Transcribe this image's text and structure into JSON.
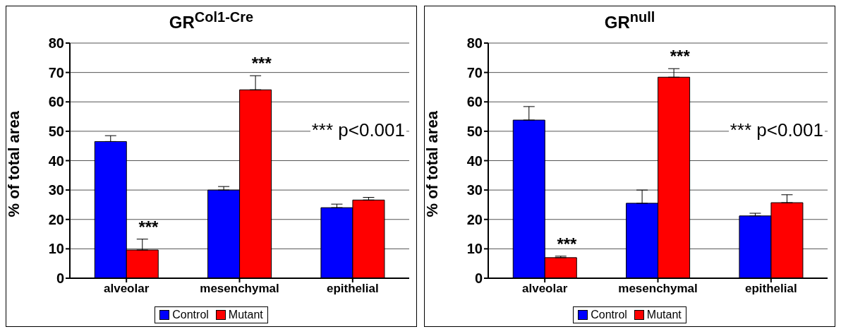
{
  "chart_data": [
    {
      "type": "bar",
      "title": "GR$^{Col1-Cre}$",
      "ylabel": "% of total area",
      "categories": [
        "alveolar",
        "mesenchymal",
        "epithelial"
      ],
      "series": [
        {
          "name": "Control",
          "color": "#0000ff",
          "values": [
            46.5,
            30,
            24
          ],
          "errors": [
            [
              46.5,
              48.5
            ],
            [
              30,
              31.2
            ],
            [
              24,
              25.2
            ]
          ]
        },
        {
          "name": "Mutant",
          "color": "#ff0000",
          "values": [
            9.6,
            64.1,
            26.6
          ],
          "errors": [
            [
              9.6,
              13.3
            ],
            [
              64.1,
              68.9
            ],
            [
              26.6,
              27.5
            ]
          ]
        }
      ],
      "ylim": [
        0,
        80
      ],
      "yticks": [
        0,
        10,
        20,
        30,
        40,
        50,
        60,
        70,
        80
      ],
      "grid": "y",
      "legend": "bottom",
      "annotations": [
        {
          "text": "***",
          "x": "alveolar",
          "y": 9.6
        },
        {
          "text": "***",
          "x": "mesenchymal",
          "y": 64.1
        },
        "*** p<0.001"
      ]
    },
    {
      "type": "bar",
      "title": "GR$^{null}$",
      "ylabel": "% of total area",
      "categories": [
        "alveolar",
        "mesenchymal",
        "epithelial"
      ],
      "series": [
        {
          "name": "Control",
          "color": "#0000ff",
          "values": [
            53.8,
            25.5,
            21.2
          ],
          "errors": [
            [
              53.8,
              58.4
            ],
            [
              25.5,
              30
            ],
            [
              21.2,
              22.1
            ]
          ]
        },
        {
          "name": "Mutant",
          "color": "#ff0000",
          "values": [
            7,
            68.4,
            25.7
          ],
          "errors": [
            [
              7,
              7.5
            ],
            [
              68.4,
              71.3
            ],
            [
              25.7,
              28.4
            ]
          ]
        }
      ],
      "ylim": [
        0,
        80
      ],
      "yticks": [
        0,
        10,
        20,
        30,
        40,
        50,
        60,
        70,
        80
      ],
      "grid": "y",
      "legend": "bottom",
      "annotations": [
        {
          "text": "***",
          "x": "alveolar",
          "y": 7
        },
        {
          "text": "***",
          "x": "mesenchymal",
          "y": 68.4
        },
        "*** p<0.001"
      ]
    }
  ]
}
